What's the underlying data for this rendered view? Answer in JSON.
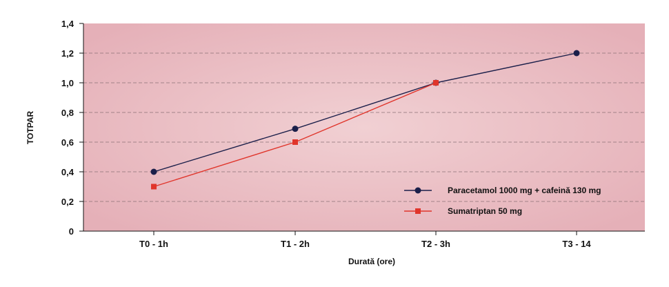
{
  "chart_data": {
    "type": "line",
    "title": "",
    "xlabel": "Durată (ore)",
    "ylabel": "TOTPAR",
    "categories": [
      "T0 - 1h",
      "T1 - 2h",
      "T2 - 3h",
      "T3 - 14"
    ],
    "ylim": [
      0,
      1.4
    ],
    "yticks": [
      "0",
      "0,2",
      "0,4",
      "0,6",
      "0,8",
      "1,0",
      "1,2",
      "1,4"
    ],
    "grid": "horizontal dashed",
    "legend_position": "bottom-right",
    "series": [
      {
        "name": "Paracetamol 1000 mg + cafeină 130 mg",
        "values": [
          0.4,
          0.69,
          1.0,
          1.2
        ],
        "color": "#1b1f4a",
        "marker": "circle"
      },
      {
        "name": "Sumatriptan 50 mg",
        "values": [
          0.3,
          0.6,
          1.0,
          null
        ],
        "color": "#e0352b",
        "marker": "square"
      }
    ],
    "plot_background": "#e8b9bf"
  }
}
